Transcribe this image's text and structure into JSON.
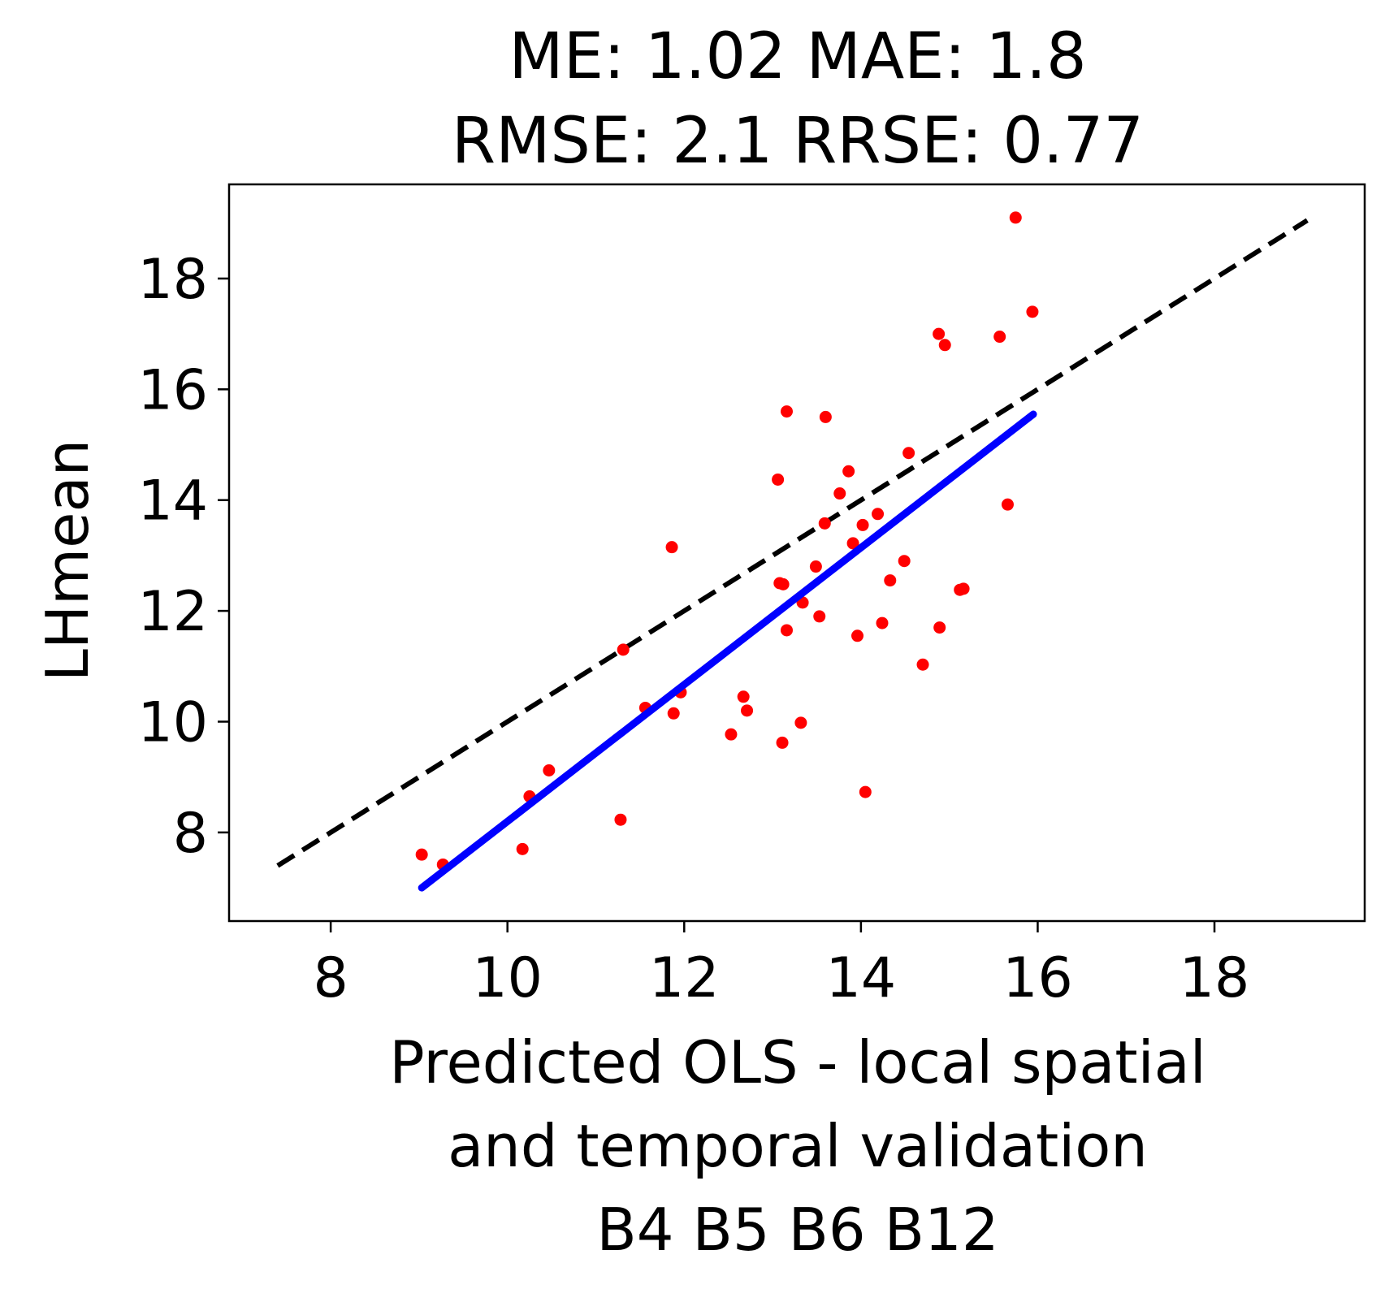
{
  "chart_data": {
    "type": "scatter",
    "title_lines": [
      "ME: 1.02 MAE: 1.8",
      "RMSE: 2.1 RRSE: 0.77"
    ],
    "xlabel_lines": [
      "Predicted OLS - local spatial",
      "and temporal validation",
      "B4 B5 B6 B12"
    ],
    "ylabel": "LHmean",
    "xlim": [
      6.85,
      19.7
    ],
    "ylim": [
      6.4,
      19.7
    ],
    "x_ticks": [
      8,
      10,
      12,
      14,
      16,
      18
    ],
    "y_ticks": [
      8,
      10,
      12,
      14,
      16,
      18
    ],
    "x_tick_labels": [
      "8",
      "10",
      "12",
      "14",
      "16",
      "18"
    ],
    "y_tick_labels": [
      "8",
      "10",
      "12",
      "14",
      "16",
      "18"
    ],
    "grid": false,
    "colors": {
      "points": "#ff0000",
      "fit_line": "#0000ff",
      "identity_line": "#000000"
    },
    "identity_line": {
      "x": [
        7.4,
        19.05
      ],
      "y": [
        7.4,
        19.05
      ],
      "style": "dashed"
    },
    "fit_line": {
      "x": [
        9.03,
        15.95
      ],
      "y": [
        7.0,
        15.55
      ]
    },
    "points": [
      {
        "x": 9.03,
        "y": 7.6
      },
      {
        "x": 9.27,
        "y": 7.42
      },
      {
        "x": 10.17,
        "y": 7.7
      },
      {
        "x": 10.25,
        "y": 8.65
      },
      {
        "x": 10.47,
        "y": 9.12
      },
      {
        "x": 11.28,
        "y": 8.23
      },
      {
        "x": 11.31,
        "y": 11.3
      },
      {
        "x": 11.56,
        "y": 10.25
      },
      {
        "x": 11.86,
        "y": 13.15
      },
      {
        "x": 11.88,
        "y": 10.15
      },
      {
        "x": 11.96,
        "y": 10.53
      },
      {
        "x": 12.53,
        "y": 9.77
      },
      {
        "x": 12.67,
        "y": 10.45
      },
      {
        "x": 12.71,
        "y": 10.2
      },
      {
        "x": 13.06,
        "y": 14.37
      },
      {
        "x": 13.08,
        "y": 12.5
      },
      {
        "x": 13.12,
        "y": 12.48
      },
      {
        "x": 13.11,
        "y": 9.62
      },
      {
        "x": 13.16,
        "y": 15.6
      },
      {
        "x": 13.16,
        "y": 11.65
      },
      {
        "x": 13.32,
        "y": 9.98
      },
      {
        "x": 13.34,
        "y": 12.15
      },
      {
        "x": 13.49,
        "y": 12.8
      },
      {
        "x": 13.53,
        "y": 11.9
      },
      {
        "x": 13.59,
        "y": 13.58
      },
      {
        "x": 13.6,
        "y": 15.5
      },
      {
        "x": 13.76,
        "y": 14.12
      },
      {
        "x": 13.86,
        "y": 14.52
      },
      {
        "x": 13.91,
        "y": 13.22
      },
      {
        "x": 13.96,
        "y": 11.55
      },
      {
        "x": 14.02,
        "y": 13.55
      },
      {
        "x": 14.05,
        "y": 8.73
      },
      {
        "x": 14.19,
        "y": 13.75
      },
      {
        "x": 14.24,
        "y": 11.78
      },
      {
        "x": 14.33,
        "y": 12.55
      },
      {
        "x": 14.49,
        "y": 12.9
      },
      {
        "x": 14.54,
        "y": 14.85
      },
      {
        "x": 14.7,
        "y": 11.03
      },
      {
        "x": 14.88,
        "y": 17.0
      },
      {
        "x": 14.89,
        "y": 11.7
      },
      {
        "x": 14.95,
        "y": 16.8
      },
      {
        "x": 15.12,
        "y": 12.38
      },
      {
        "x": 15.16,
        "y": 12.4
      },
      {
        "x": 15.57,
        "y": 16.95
      },
      {
        "x": 15.66,
        "y": 13.92
      },
      {
        "x": 15.75,
        "y": 19.1
      },
      {
        "x": 15.94,
        "y": 17.4
      }
    ]
  }
}
